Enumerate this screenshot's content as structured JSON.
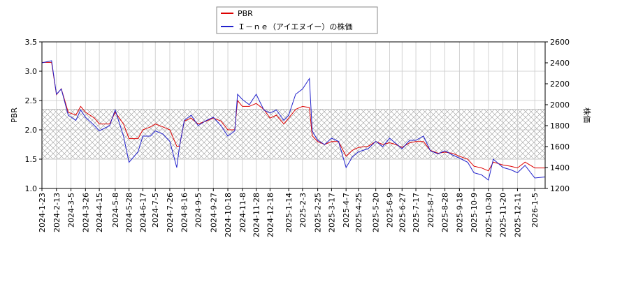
{
  "chart_data": {
    "type": "line",
    "ylabel": "PBR",
    "y2label": "株価",
    "ylim": [
      1.0,
      3.5
    ],
    "yticks": [
      {
        "value": 1.0,
        "label": "1.0"
      },
      {
        "value": 1.5,
        "label": "1.5"
      },
      {
        "value": 2.0,
        "label": "2.0"
      },
      {
        "value": 2.5,
        "label": "2.5"
      },
      {
        "value": 3.0,
        "label": "3.0"
      },
      {
        "value": 3.5,
        "label": "3.5"
      }
    ],
    "y2lim": [
      1200,
      2600
    ],
    "y2ticks": [
      1200,
      1400,
      1600,
      1800,
      2000,
      2200,
      2400,
      2600
    ],
    "xlim": [
      "2024-1-23",
      "2026-1-20"
    ],
    "xticks": [
      "2024-1-23",
      "2024-2-13",
      "2024-3-5",
      "2024-3-26",
      "2024-4-15",
      "2024-5-8",
      "2024-5-28",
      "2024-6-17",
      "2024-7-5",
      "2024-7-26",
      "2024-8-16",
      "2024-9-5",
      "2024-9-27",
      "2024-10-18",
      "2024-11-8",
      "2024-11-28",
      "2024-12-18",
      "2025-1-14",
      "2025-2-3",
      "2025-2-25",
      "2025-3-17",
      "2025-4-7",
      "2025-4-25",
      "2025-5-20",
      "2025-6-9",
      "2025-6-27",
      "2025-7-17",
      "2025-8-7",
      "2025-8-28",
      "2025-9-18",
      "2025-10-9",
      "2025-10-30",
      "2025-11-20",
      "2025-12-11",
      "2026-1-5"
    ],
    "grid": true,
    "band": [
      1.5,
      2.35
    ],
    "x": [
      "2024-1-23",
      "2024-2-6",
      "2024-2-13",
      "2024-2-20",
      "2024-3-1",
      "2024-3-12",
      "2024-3-19",
      "2024-3-26",
      "2024-4-8",
      "2024-4-15",
      "2024-4-30",
      "2024-5-8",
      "2024-5-20",
      "2024-5-28",
      "2024-6-10",
      "2024-6-17",
      "2024-6-28",
      "2024-7-5",
      "2024-7-16",
      "2024-7-26",
      "2024-8-5",
      "2024-8-9",
      "2024-8-16",
      "2024-8-26",
      "2024-9-5",
      "2024-9-17",
      "2024-9-27",
      "2024-10-8",
      "2024-10-18",
      "2024-10-28",
      "2024-11-1",
      "2024-11-8",
      "2024-11-18",
      "2024-11-28",
      "2024-12-9",
      "2024-12-18",
      "2024-12-27",
      "2025-1-7",
      "2025-1-14",
      "2025-1-24",
      "2025-2-3",
      "2025-2-13",
      "2025-2-17",
      "2025-2-25",
      "2025-3-7",
      "2025-3-17",
      "2025-3-27",
      "2025-4-7",
      "2025-4-16",
      "2025-4-25",
      "2025-5-9",
      "2025-5-20",
      "2025-5-30",
      "2025-6-9",
      "2025-6-18",
      "2025-6-27",
      "2025-7-8",
      "2025-7-17",
      "2025-7-28",
      "2025-8-7",
      "2025-8-18",
      "2025-8-28",
      "2025-9-8",
      "2025-9-18",
      "2025-9-30",
      "2025-10-9",
      "2025-10-20",
      "2025-10-30",
      "2025-11-6",
      "2025-11-20",
      "2025-12-1",
      "2025-12-11",
      "2025-12-22",
      "2026-1-5",
      "2026-1-20"
    ],
    "series": [
      {
        "name": "PBR",
        "color": "#dd0000",
        "axis": "y",
        "values": [
          3.15,
          3.15,
          2.6,
          2.7,
          2.3,
          2.25,
          2.4,
          2.3,
          2.2,
          2.1,
          2.1,
          2.3,
          2.1,
          1.85,
          1.85,
          2.0,
          2.05,
          2.1,
          2.05,
          2.0,
          1.72,
          1.72,
          2.15,
          2.2,
          2.1,
          2.15,
          2.2,
          2.15,
          2.0,
          2.0,
          2.5,
          2.4,
          2.4,
          2.45,
          2.35,
          2.2,
          2.25,
          2.1,
          2.2,
          2.35,
          2.4,
          2.38,
          1.9,
          1.8,
          1.75,
          1.8,
          1.8,
          1.55,
          1.65,
          1.7,
          1.72,
          1.8,
          1.75,
          1.78,
          1.75,
          1.7,
          1.78,
          1.8,
          1.8,
          1.65,
          1.6,
          1.62,
          1.6,
          1.55,
          1.5,
          1.38,
          1.35,
          1.3,
          1.45,
          1.4,
          1.38,
          1.35,
          1.45,
          1.35,
          1.35
        ]
      },
      {
        "name": "Ｉ－ｎｅ（アイエヌイー）の株価",
        "color": "#2222cc",
        "axis": "y2",
        "values": [
          2400,
          2420,
          2100,
          2150,
          1900,
          1850,
          1950,
          1880,
          1800,
          1750,
          1800,
          1950,
          1700,
          1450,
          1550,
          1700,
          1700,
          1750,
          1720,
          1650,
          1400,
          1600,
          1850,
          1900,
          1800,
          1850,
          1880,
          1800,
          1700,
          1750,
          2100,
          2050,
          2000,
          2100,
          1950,
          1920,
          1950,
          1850,
          1900,
          2100,
          2150,
          2250,
          1750,
          1660,
          1620,
          1680,
          1650,
          1400,
          1500,
          1550,
          1580,
          1650,
          1600,
          1680,
          1630,
          1580,
          1660,
          1660,
          1700,
          1560,
          1530,
          1560,
          1520,
          1490,
          1450,
          1350,
          1330,
          1280,
          1480,
          1400,
          1380,
          1350,
          1420,
          1300,
          1310
        ]
      }
    ]
  }
}
